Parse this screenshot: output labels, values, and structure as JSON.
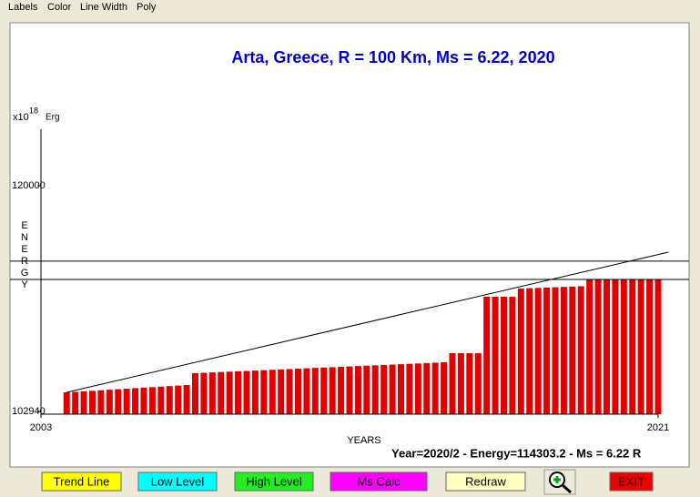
{
  "menu": [
    "Labels",
    "Color",
    "Line Width",
    "Poly"
  ],
  "chart_data": {
    "type": "bar",
    "title": "Arta, Greece, R = 100 Km, Ms = 6.22, 2020",
    "y_unit": "x10",
    "y_unit_exponent": "18",
    "y_unit_name": "Erg",
    "y_label": "ENERGY",
    "x_label": "YEARS",
    "status": "Year=2020/2 - Energy=114303.2 - Ms = 6.22 R",
    "color": "#e00000",
    "x": [
      2003.75,
      2004,
      2004.25,
      2004.5,
      2004.75,
      2005,
      2005.25,
      2005.5,
      2005.75,
      2006,
      2006.25,
      2006.5,
      2006.75,
      2007,
      2007.25,
      2007.5,
      2007.75,
      2008,
      2008.25,
      2008.5,
      2008.75,
      2009,
      2009.25,
      2009.5,
      2009.75,
      2010,
      2010.25,
      2010.5,
      2010.75,
      2011,
      2011.25,
      2011.5,
      2011.75,
      2012,
      2012.25,
      2012.5,
      2012.75,
      2013,
      2013.25,
      2013.5,
      2013.75,
      2014,
      2014.25,
      2014.5,
      2014.75,
      2015,
      2015.25,
      2015.5,
      2015.75,
      2016,
      2016.25,
      2016.5,
      2016.75,
      2017,
      2017.25,
      2017.5,
      2017.75,
      2018,
      2018.25,
      2018.5,
      2018.75,
      2019,
      2019.25,
      2019.5,
      2019.75,
      2020,
      2020.25,
      2020.5,
      2020.75,
      2021
    ],
    "values": [
      104385,
      104420,
      104460,
      104500,
      104540,
      104580,
      104620,
      104660,
      104700,
      104740,
      104775,
      104815,
      104855,
      104895,
      104935,
      105830,
      105860,
      105890,
      105920,
      105945,
      105975,
      106000,
      106030,
      106060,
      106090,
      106115,
      106145,
      106170,
      106200,
      106230,
      106260,
      106285,
      106310,
      106340,
      106370,
      106400,
      106425,
      106455,
      106480,
      106510,
      106540,
      106565,
      106595,
      106625,
      106655,
      107340,
      107340,
      107340,
      107340,
      111607,
      111607,
      111607,
      111607,
      112227,
      112250,
      112275,
      112300,
      112325,
      112350,
      112375,
      112400,
      112915,
      112915,
      112915,
      112915,
      112915,
      112915,
      112915,
      112915,
      112915
    ],
    "trend_line": {
      "x": [
        2003.75,
        2021.3
      ],
      "values": [
        104385,
        114978
      ]
    },
    "levels": [
      114303.2,
      112915
    ],
    "xlim": [
      2003,
      2021
    ],
    "xticks": [
      2003,
      2021
    ],
    "ylim": [
      102734,
      124265
    ],
    "yticks": [
      102940,
      120000
    ]
  },
  "buttons": [
    {
      "label": "Trend Line",
      "color": "#ffff00"
    },
    {
      "label": "Low Level",
      "color": "#00ffff"
    },
    {
      "label": "High Level",
      "color": "#22ee22"
    },
    {
      "label": "Ms Calc",
      "color": "#ff00ff"
    },
    {
      "label": "Redraw",
      "color": "#ffffc0"
    },
    {
      "label": "EXIT",
      "color": "#ee0000"
    }
  ]
}
